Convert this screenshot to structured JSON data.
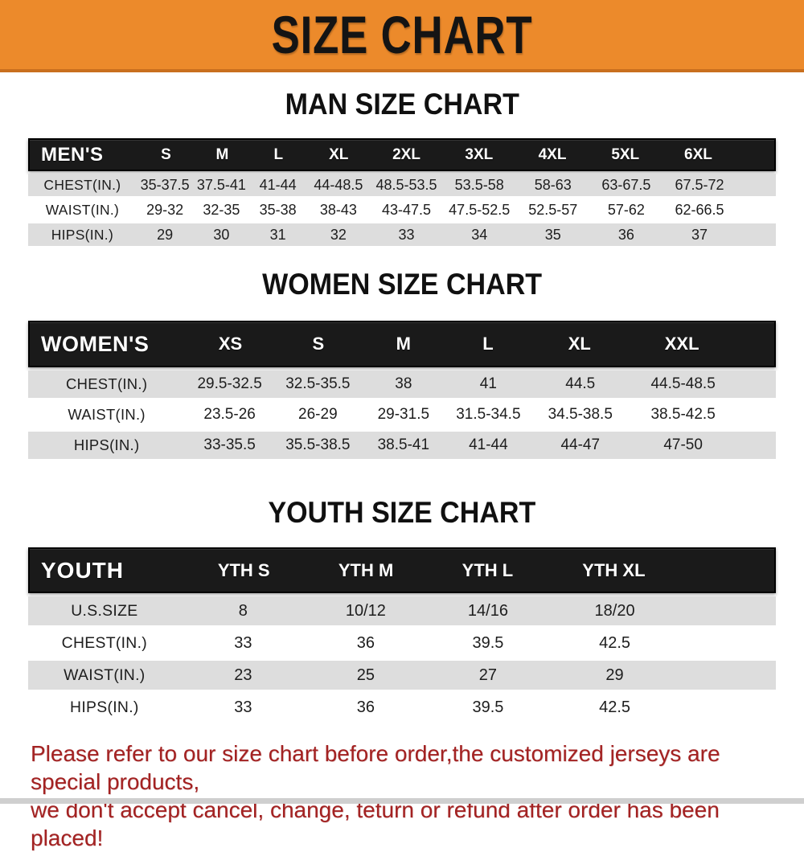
{
  "banner": {
    "title": "SIZE CHART",
    "bg_color": "#EC8A2B",
    "border_color": "#C96F1E"
  },
  "colors": {
    "bar_black": "#1A1A1A",
    "row_gray": "#DDDDDD",
    "row_white": "#FFFFFF",
    "note_red": "#A32222"
  },
  "sections": {
    "men": {
      "heading": "MAN SIZE CHART",
      "table": {
        "header": [
          "MEN'S",
          "S",
          "M",
          "L",
          "XL",
          "2XL",
          "3XL",
          "4XL",
          "5XL",
          "6XL"
        ],
        "rows": [
          {
            "label": "CHEST(IN.)",
            "values": [
              "35-37.5",
              "37.5-41",
              "41-44",
              "44-48.5",
              "48.5-53.5",
              "53.5-58",
              "58-63",
              "63-67.5",
              "67.5-72"
            ]
          },
          {
            "label": "WAIST(IN.)",
            "values": [
              "29-32",
              "32-35",
              "35-38",
              "38-43",
              "43-47.5",
              "47.5-52.5",
              "52.5-57",
              "57-62",
              "62-66.5"
            ]
          },
          {
            "label": "HIPS(IN.)",
            "values": [
              "29",
              "30",
              "31",
              "32",
              "33",
              "34",
              "35",
              "36",
              "37"
            ]
          }
        ]
      }
    },
    "women": {
      "heading": "WOMEN SIZE CHART",
      "table": {
        "header": [
          "WOMEN'S",
          "XS",
          "S",
          "M",
          "L",
          "XL",
          "XXL"
        ],
        "rows": [
          {
            "label": "CHEST(IN.)",
            "values": [
              "29.5-32.5",
              "32.5-35.5",
              "38",
              "41",
              "44.5",
              "44.5-48.5"
            ]
          },
          {
            "label": "WAIST(IN.)",
            "values": [
              "23.5-26",
              "26-29",
              "29-31.5",
              "31.5-34.5",
              "34.5-38.5",
              "38.5-42.5"
            ]
          },
          {
            "label": "HIPS(IN.)",
            "values": [
              "33-35.5",
              "35.5-38.5",
              "38.5-41",
              "41-44",
              "44-47",
              "47-50"
            ]
          }
        ]
      }
    },
    "youth": {
      "heading": "YOUTH SIZE CHART",
      "table": {
        "header": [
          "YOUTH",
          "YTH S",
          "YTH M",
          "YTH L",
          "YTH XL"
        ],
        "rows": [
          {
            "label": "U.S.SIZE",
            "values": [
              "8",
              "10/12",
              "14/16",
              "18/20"
            ]
          },
          {
            "label": "CHEST(IN.)",
            "values": [
              "33",
              "36",
              "39.5",
              "42.5"
            ]
          },
          {
            "label": "WAIST(IN.)",
            "values": [
              "23",
              "25",
              "27",
              "29"
            ]
          },
          {
            "label": "HIPS(IN.)",
            "values": [
              "33",
              "36",
              "39.5",
              "42.5"
            ]
          }
        ]
      }
    }
  },
  "footer": {
    "line1": "Please refer to our size chart before order,the customized jerseys are special products,",
    "line2": "we don't accept cancel, change, teturn or refund after order has been placed!"
  }
}
